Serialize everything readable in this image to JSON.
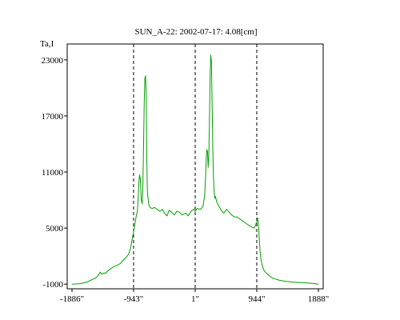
{
  "chart_data": {
    "type": "line",
    "title": "SUN_A-22: 2002-07-17: 4.08[cm]",
    "ylabel": "Ta,I",
    "xlabel": "",
    "xlim": [
      -1886,
      1888
    ],
    "ylim": [
      -1500,
      24700
    ],
    "yticks": [
      23000,
      17000,
      11000,
      5000,
      -1000
    ],
    "ytick_labels": [
      "23000",
      "17000",
      "11000",
      "5000",
      "-1000"
    ],
    "xticks": [
      -1886,
      -943,
      1,
      944,
      1888
    ],
    "xtick_labels": [
      "-1886\"",
      "-943\"",
      "1\"",
      "944\"",
      "1888\""
    ],
    "vlines": [
      -943,
      1,
      944
    ],
    "grid": false,
    "line_color": "#00a000",
    "series": [
      {
        "x": [
          -1886,
          -1830,
          -1770,
          -1700,
          -1640,
          -1590,
          -1550,
          -1510,
          -1480,
          -1455,
          -1430,
          -1400,
          -1370,
          -1340,
          -1300,
          -1250,
          -1200,
          -1150,
          -1100,
          -1060,
          -1020,
          -990,
          -965,
          -945,
          -925,
          -905,
          -885,
          -870,
          -860,
          -850,
          -840,
          -825,
          -810,
          -800,
          -790,
          -780,
          -770,
          -760,
          -750,
          -745,
          -740,
          -730,
          -710,
          -690,
          -660,
          -620,
          -580,
          -540,
          -500,
          -460,
          -430,
          -400,
          -360,
          -320,
          -280,
          -240,
          -200,
          -170,
          -140,
          -110,
          -80,
          -50,
          -20,
          0,
          30,
          80,
          120,
          145,
          160,
          170,
          180,
          190,
          200,
          210,
          220,
          230,
          240,
          250,
          260,
          270,
          280,
          290,
          300,
          310,
          330,
          360,
          400,
          440,
          480,
          520,
          560,
          600,
          640,
          680,
          720,
          760,
          800,
          840,
          870,
          900,
          920,
          935,
          945,
          955,
          965,
          975,
          985,
          995,
          1010,
          1030,
          1060,
          1100,
          1150,
          1200,
          1300,
          1400,
          1500,
          1600,
          1700,
          1800,
          1888
        ],
        "y": [
          -1000,
          -990,
          -950,
          -860,
          -730,
          -550,
          -430,
          -280,
          -20,
          280,
          70,
          190,
          170,
          400,
          620,
          850,
          1000,
          1200,
          1550,
          1850,
          2200,
          2800,
          3800,
          4500,
          5300,
          6200,
          6800,
          8500,
          10000,
          10700,
          10200,
          8000,
          7600,
          9500,
          13500,
          18500,
          21000,
          21300,
          19500,
          16000,
          12500,
          8800,
          7500,
          7200,
          7100,
          7200,
          7000,
          6800,
          7000,
          6500,
          6300,
          6900,
          6700,
          6400,
          6800,
          6700,
          6400,
          6500,
          6600,
          6300,
          6600,
          6900,
          7000,
          6800,
          7100,
          7000,
          7300,
          8500,
          10500,
          12500,
          13400,
          13200,
          11500,
          13000,
          17000,
          21500,
          23500,
          22800,
          18500,
          13500,
          10500,
          9000,
          8200,
          8400,
          7800,
          7400,
          6900,
          6600,
          7000,
          6700,
          6400,
          6200,
          6200,
          6000,
          5800,
          5600,
          5400,
          5200,
          5100,
          5000,
          5200,
          5500,
          5600,
          6100,
          5700,
          4800,
          3500,
          2500,
          1600,
          900,
          400,
          100,
          -200,
          -400,
          -600,
          -700,
          -780,
          -820,
          -870,
          -920,
          -1000
        ]
      }
    ]
  }
}
